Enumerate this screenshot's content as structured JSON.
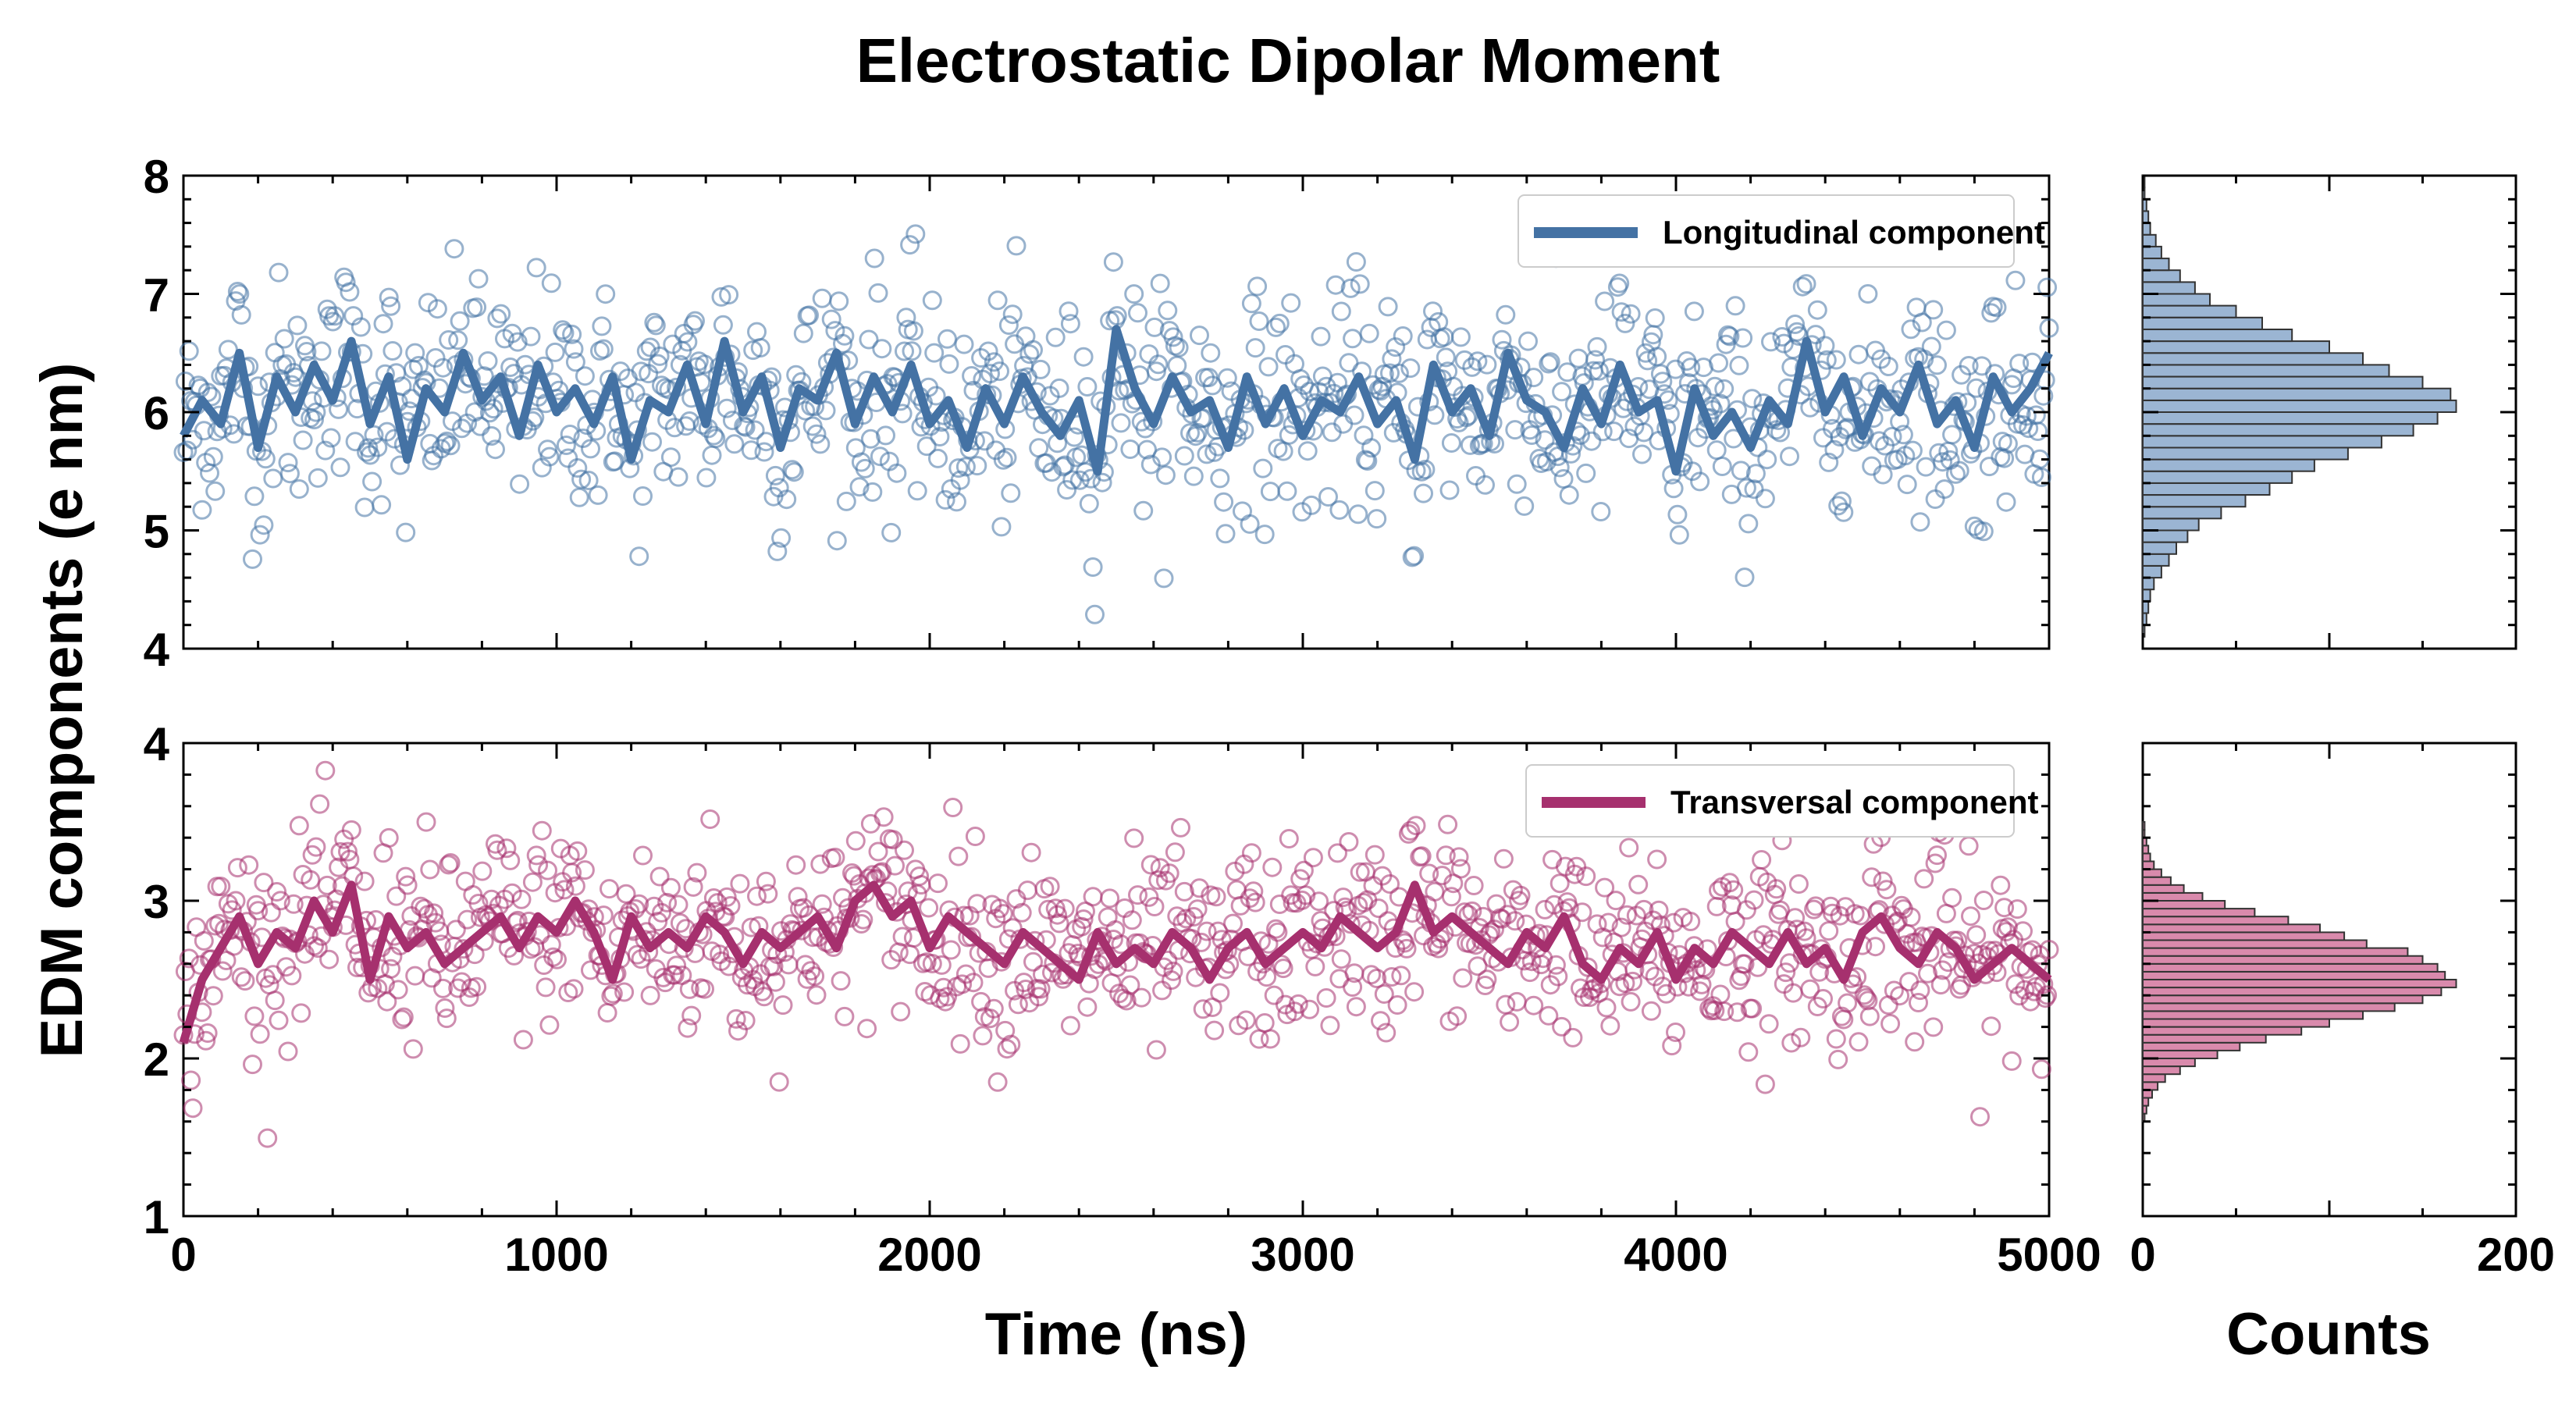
{
  "figure": {
    "title": "Electrostatic Dipolar Moment",
    "shared_ylabel": "EDM components (e nm)"
  },
  "colors": {
    "longitudinal": "#4472a4",
    "transversal": "#a6306e",
    "hist_longitudinal_fill": "#9bb5d3",
    "hist_transversal_fill": "#d98aac"
  },
  "chart_data": [
    {
      "type": "scatter",
      "panel": "top-time-series",
      "xlabel": "",
      "ylabel": "",
      "xlim": [
        0,
        5000
      ],
      "ylim": [
        4,
        8
      ],
      "xticks": [
        0,
        1000,
        2000,
        3000,
        4000,
        5000
      ],
      "yticks": [
        4,
        5,
        6,
        7,
        8
      ],
      "ytick_labels": [
        "4",
        "5",
        "6",
        "7",
        "8"
      ],
      "legend_position": "top-right",
      "series": [
        {
          "name": "Longitudinal component",
          "kind": "line",
          "x": [
            0,
            50,
            100,
            150,
            200,
            250,
            300,
            350,
            400,
            450,
            500,
            550,
            600,
            650,
            700,
            750,
            800,
            850,
            900,
            950,
            1000,
            1050,
            1100,
            1150,
            1200,
            1250,
            1300,
            1350,
            1400,
            1450,
            1500,
            1550,
            1600,
            1650,
            1700,
            1750,
            1800,
            1850,
            1900,
            1950,
            2000,
            2050,
            2100,
            2150,
            2200,
            2250,
            2300,
            2350,
            2400,
            2450,
            2500,
            2550,
            2600,
            2650,
            2700,
            2750,
            2800,
            2850,
            2900,
            2950,
            3000,
            3050,
            3100,
            3150,
            3200,
            3250,
            3300,
            3350,
            3400,
            3450,
            3500,
            3550,
            3600,
            3650,
            3700,
            3750,
            3800,
            3850,
            3900,
            3950,
            4000,
            4050,
            4100,
            4150,
            4200,
            4250,
            4300,
            4350,
            4400,
            4450,
            4500,
            4550,
            4600,
            4650,
            4700,
            4750,
            4800,
            4850,
            4900,
            4950,
            5000
          ],
          "y": [
            5.8,
            6.1,
            5.9,
            6.5,
            5.7,
            6.3,
            6.0,
            6.4,
            6.1,
            6.6,
            5.9,
            6.3,
            5.6,
            6.2,
            6.0,
            6.5,
            6.1,
            6.3,
            5.8,
            6.4,
            6.0,
            6.2,
            5.9,
            6.3,
            5.6,
            6.1,
            6.0,
            6.4,
            5.9,
            6.6,
            6.0,
            6.3,
            5.7,
            6.2,
            6.1,
            6.5,
            5.9,
            6.3,
            6.0,
            6.4,
            5.9,
            6.1,
            5.7,
            6.2,
            5.9,
            6.3,
            6.0,
            5.8,
            6.1,
            5.5,
            6.7,
            6.2,
            5.9,
            6.3,
            6.0,
            6.1,
            5.7,
            6.3,
            5.9,
            6.2,
            5.8,
            6.1,
            6.0,
            6.3,
            5.9,
            6.1,
            5.6,
            6.4,
            6.0,
            6.2,
            5.8,
            6.5,
            6.1,
            6.0,
            5.7,
            6.2,
            5.9,
            6.4,
            6.0,
            6.1,
            5.5,
            6.2,
            5.8,
            6.0,
            5.7,
            6.1,
            5.9,
            6.6,
            6.0,
            6.3,
            5.8,
            6.2,
            6.0,
            6.4,
            5.9,
            6.1,
            5.7,
            6.3,
            6.0,
            6.2,
            6.5
          ]
        }
      ]
    },
    {
      "type": "scatter",
      "panel": "bottom-time-series",
      "xlabel": "Time (ns)",
      "ylabel": "",
      "xlim": [
        0,
        5000
      ],
      "ylim": [
        1,
        4
      ],
      "xticks": [
        0,
        1000,
        2000,
        3000,
        4000,
        5000
      ],
      "xtick_labels": [
        "0",
        "1000",
        "2000",
        "3000",
        "4000",
        "5000"
      ],
      "yticks": [
        1,
        2,
        3,
        4
      ],
      "ytick_labels": [
        "1",
        "2",
        "3",
        "4"
      ],
      "legend_position": "top-right",
      "series": [
        {
          "name": "Transversal component",
          "kind": "line",
          "x": [
            0,
            50,
            100,
            150,
            200,
            250,
            300,
            350,
            400,
            450,
            500,
            550,
            600,
            650,
            700,
            750,
            800,
            850,
            900,
            950,
            1000,
            1050,
            1100,
            1150,
            1200,
            1250,
            1300,
            1350,
            1400,
            1450,
            1500,
            1550,
            1600,
            1650,
            1700,
            1750,
            1800,
            1850,
            1900,
            1950,
            2000,
            2050,
            2100,
            2150,
            2200,
            2250,
            2300,
            2350,
            2400,
            2450,
            2500,
            2550,
            2600,
            2650,
            2700,
            2750,
            2800,
            2850,
            2900,
            2950,
            3000,
            3050,
            3100,
            3150,
            3200,
            3250,
            3300,
            3350,
            3400,
            3450,
            3500,
            3550,
            3600,
            3650,
            3700,
            3750,
            3800,
            3850,
            3900,
            3950,
            4000,
            4050,
            4100,
            4150,
            4200,
            4250,
            4300,
            4350,
            4400,
            4450,
            4500,
            4550,
            4600,
            4650,
            4700,
            4750,
            4800,
            4850,
            4900,
            4950,
            5000
          ],
          "y": [
            2.1,
            2.5,
            2.7,
            2.9,
            2.6,
            2.8,
            2.7,
            3.0,
            2.8,
            3.1,
            2.5,
            2.9,
            2.7,
            2.8,
            2.6,
            2.7,
            2.8,
            2.9,
            2.7,
            2.9,
            2.8,
            3.0,
            2.8,
            2.5,
            2.9,
            2.7,
            2.8,
            2.7,
            2.9,
            2.8,
            2.6,
            2.8,
            2.7,
            2.8,
            2.9,
            2.7,
            3.0,
            3.1,
            2.9,
            3.0,
            2.7,
            2.9,
            2.8,
            2.7,
            2.6,
            2.8,
            2.7,
            2.6,
            2.5,
            2.8,
            2.6,
            2.7,
            2.6,
            2.8,
            2.7,
            2.5,
            2.7,
            2.8,
            2.6,
            2.7,
            2.8,
            2.7,
            2.9,
            2.8,
            2.7,
            2.8,
            3.1,
            2.8,
            2.9,
            2.8,
            2.7,
            2.6,
            2.8,
            2.7,
            2.9,
            2.6,
            2.5,
            2.7,
            2.6,
            2.8,
            2.5,
            2.7,
            2.6,
            2.8,
            2.7,
            2.6,
            2.8,
            2.6,
            2.7,
            2.5,
            2.8,
            2.9,
            2.7,
            2.6,
            2.8,
            2.7,
            2.5,
            2.6,
            2.7,
            2.6,
            2.5
          ]
        }
      ]
    },
    {
      "type": "bar",
      "panel": "top-histogram",
      "orientation": "horizontal",
      "xlabel": "",
      "ylim": [
        4,
        8
      ],
      "xlim": [
        0,
        200
      ],
      "bin_width": 0.1,
      "bin_start": 4.0,
      "values": [
        0,
        1,
        2,
        3,
        4,
        6,
        10,
        14,
        18,
        24,
        30,
        42,
        55,
        68,
        80,
        92,
        110,
        128,
        145,
        158,
        168,
        165,
        150,
        132,
        118,
        100,
        80,
        64,
        50,
        36,
        28,
        20,
        14,
        10,
        7,
        4,
        3,
        2,
        1,
        1
      ]
    },
    {
      "type": "bar",
      "panel": "bottom-histogram",
      "orientation": "horizontal",
      "xlabel": "Counts",
      "ylim": [
        1,
        4
      ],
      "xlim": [
        0,
        200
      ],
      "xticks": [
        0,
        200
      ],
      "xtick_labels": [
        "0",
        "200"
      ],
      "bin_width": 0.05,
      "bin_start": 1.6,
      "values": [
        1,
        2,
        3,
        5,
        8,
        12,
        20,
        28,
        40,
        52,
        66,
        85,
        100,
        118,
        135,
        150,
        160,
        168,
        162,
        158,
        150,
        142,
        120,
        108,
        95,
        78,
        60,
        44,
        32,
        22,
        15,
        10,
        6,
        4,
        3,
        2,
        1,
        1
      ]
    }
  ]
}
